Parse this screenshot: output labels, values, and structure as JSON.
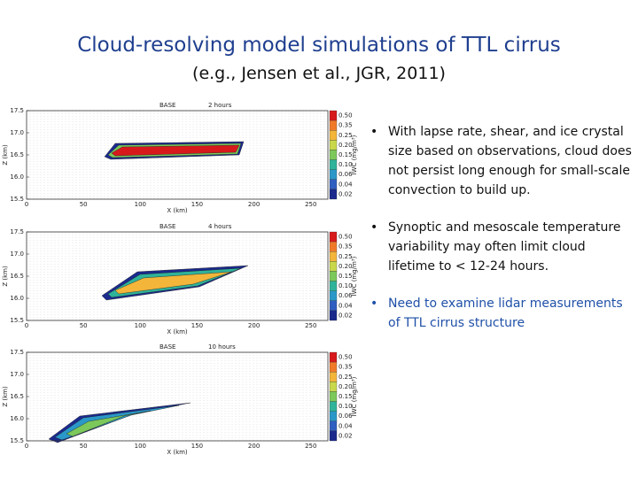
{
  "title": "Cloud-resolving model simulations of TTL cirrus",
  "subtitle": "(e.g., Jensen et al., JGR, 2011)",
  "panels": [
    {
      "label": "BASE",
      "time": "2 hours"
    },
    {
      "label": "BASE",
      "time": "4 hours"
    },
    {
      "label": "BASE",
      "time": "10 hours"
    }
  ],
  "yticks": [
    "17.5",
    "17.0",
    "16.5",
    "16.0",
    "15.5"
  ],
  "xticks": [
    "0",
    "50",
    "100",
    "150",
    "200",
    "250"
  ],
  "xlabel": "X (km)",
  "ylabel": "Z (km)",
  "colorbar_label": "IWC (mg/m³)",
  "colorbar_ticks": [
    "0.50",
    "0.35",
    "0.25",
    "0.20",
    "0.15",
    "0.10",
    "0.06",
    "0.04",
    "0.02"
  ],
  "colorbar_colors": [
    "#d7191c",
    "#f07a2a",
    "#f3b53a",
    "#c9d84a",
    "#7cc85a",
    "#2fb39a",
    "#2a98c8",
    "#2f5fc0",
    "#1b2a8c"
  ],
  "bullets": [
    "With lapse rate, shear, and ice crystal size based on observations, cloud does not persist long enough for small-scale convection to build up.",
    "Synoptic and mesoscale temperature variability may often limit cloud lifetime to < 12-24 hours.",
    "Need to examine lidar measurements of TTL cirrus structure"
  ]
}
